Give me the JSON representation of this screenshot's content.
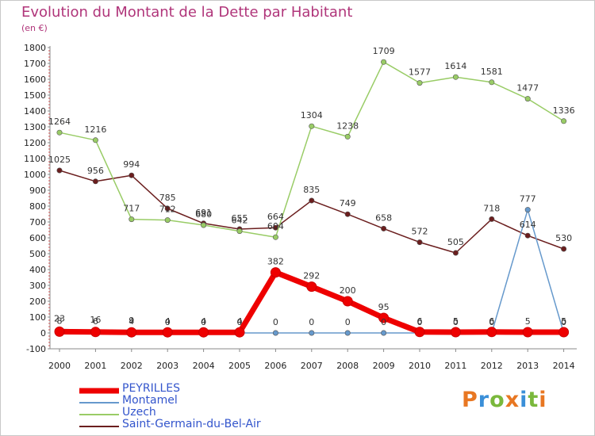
{
  "title": "Evolution du Montant de la Dette par Habitant",
  "unit": "(en €)",
  "logo": {
    "text": "Proxiti",
    "colors": [
      "#e87722",
      "#3a8fd8",
      "#7ab83c",
      "#e87722",
      "#3a8fd8",
      "#7ab83c",
      "#e87722"
    ]
  },
  "chart_data": {
    "type": "line",
    "x": [
      "2000",
      "2001",
      "2002",
      "2003",
      "2004",
      "2005",
      "2006",
      "2007",
      "2008",
      "2009",
      "2010",
      "2011",
      "2012",
      "2013",
      "2014"
    ],
    "ylim": [
      -100,
      1800
    ],
    "yticks": [
      "-100",
      "0",
      "100",
      "200",
      "300",
      "400",
      "500",
      "600",
      "700",
      "800",
      "900",
      "1000",
      "1100",
      "1200",
      "1300",
      "1400",
      "1500",
      "1600",
      "1700",
      "1800"
    ],
    "grid": false,
    "legend_position": "bottom-left",
    "series": [
      {
        "name": "PEYRILLES",
        "color": "#ee0000",
        "values": [
          8,
          6,
          4,
          4,
          4,
          4,
          382,
          292,
          200,
          95,
          6,
          5,
          6,
          5,
          5
        ],
        "labels": [
          "8",
          "6",
          "4",
          "4",
          "4",
          "4",
          "382",
          "292",
          "200",
          "95",
          "6",
          "5",
          "6",
          "5",
          "5"
        ]
      },
      {
        "name": "Montamel",
        "color": "#6699cc",
        "values": [
          23,
          16,
          9,
          0,
          0,
          0,
          0,
          0,
          0,
          0,
          0,
          0,
          0,
          777,
          0
        ],
        "labels": [
          "23",
          "16",
          "9",
          "0",
          "0",
          "0",
          "0",
          "0",
          "0",
          "0",
          "0",
          "0",
          "0",
          "777",
          "0"
        ]
      },
      {
        "name": "Uzech",
        "color": "#99cc66",
        "values": [
          1264,
          1216,
          717,
          712,
          680,
          642,
          604,
          1304,
          1238,
          1709,
          1577,
          1614,
          1581,
          1477,
          1336
        ],
        "labels": [
          "1264",
          "1216",
          "717",
          "712",
          "680",
          "642",
          "604",
          "1304",
          "1238",
          "1709",
          "1577",
          "1614",
          "1581",
          "1477",
          "1336"
        ]
      },
      {
        "name": "Saint-Germain-du-Bel-Air",
        "color": "#6b1e1e",
        "values": [
          1025,
          956,
          994,
          785,
          691,
          655,
          664,
          835,
          749,
          658,
          572,
          505,
          718,
          614,
          530
        ],
        "labels": [
          "1025",
          "956",
          "994",
          "785",
          "691",
          "655",
          "664",
          "835",
          "749",
          "658",
          "572",
          "505",
          "718",
          "614",
          "530"
        ]
      }
    ]
  }
}
